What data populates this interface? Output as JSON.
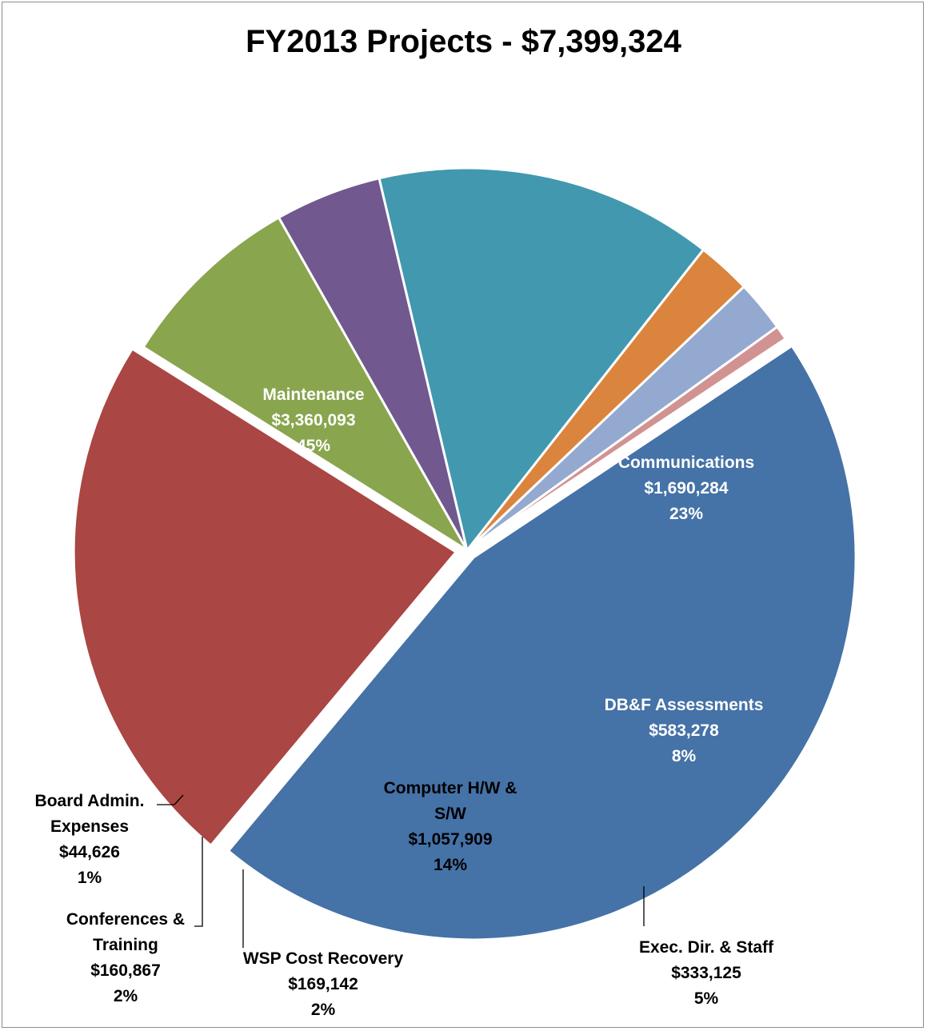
{
  "chart_data": {
    "type": "pie",
    "title": "FY2013 Projects - $7,399,324",
    "slices": [
      {
        "label": "Maintenance",
        "value_text": "$3,360,093",
        "pct_text": "45%",
        "value": 3360093,
        "color": "#4572a7"
      },
      {
        "label": "Communications",
        "value_text": "$1,690,284",
        "pct_text": "23%",
        "value": 1690284,
        "color": "#aa4643"
      },
      {
        "label": "DB&F Assessments",
        "value_text": "$583,278",
        "pct_text": "8%",
        "value": 583278,
        "color": "#89a54e"
      },
      {
        "label": "Exec. Dir. & Staff",
        "value_text": "$333,125",
        "pct_text": "5%",
        "value": 333125,
        "color": "#71588f"
      },
      {
        "label": "Computer H/W & S/W",
        "label_lines": [
          "Computer H/W &",
          "S/W"
        ],
        "value_text": "$1,057,909",
        "pct_text": "14%",
        "value": 1057909,
        "color": "#4198af"
      },
      {
        "label": "WSP Cost Recovery",
        "value_text": "$169,142",
        "pct_text": "2%",
        "value": 169142,
        "color": "#db843d"
      },
      {
        "label": "Conferences & Training",
        "label_lines": [
          "Conferences &",
          "Training"
        ],
        "value_text": "$160,867",
        "pct_text": "2%",
        "value": 160867,
        "color": "#93a9cf"
      },
      {
        "label": "Board Admin. Expenses",
        "label_lines": [
          "Board Admin.",
          "Expenses"
        ],
        "value_text": "$44,626",
        "pct_text": "1%",
        "value": 44626,
        "color": "#d19392"
      }
    ]
  }
}
